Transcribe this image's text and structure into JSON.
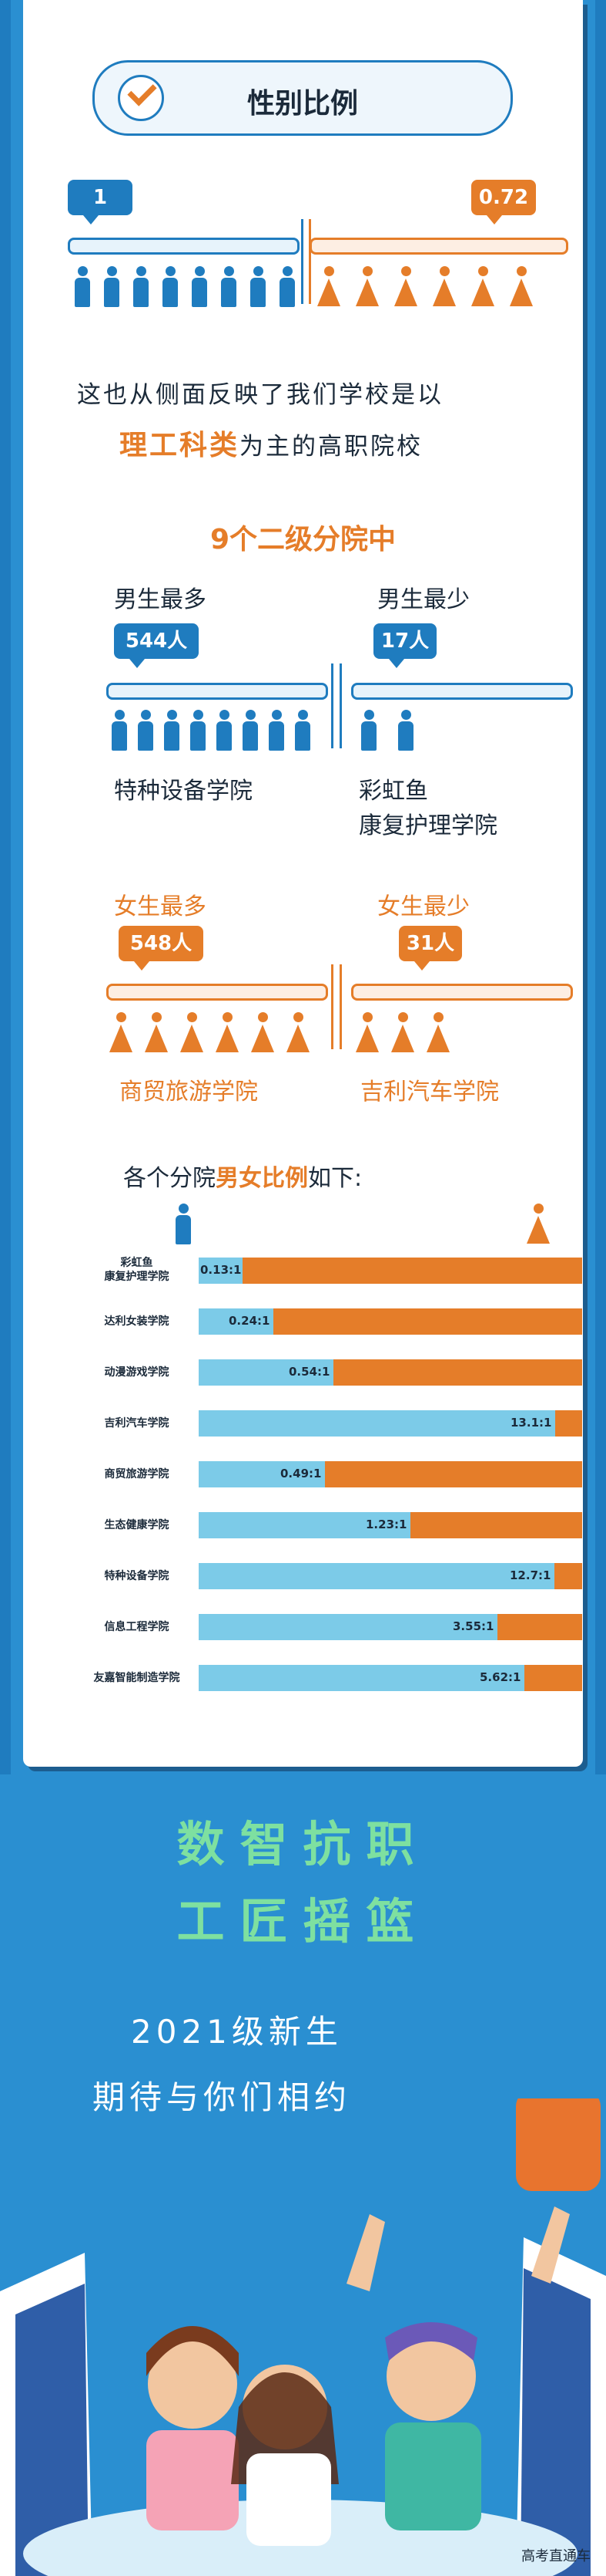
{
  "header": {
    "title": "性别比例"
  },
  "ratio": {
    "male_value": "1",
    "female_value": "0.72"
  },
  "line1": "这也从侧面反映了我们学校是以",
  "line2_highlight": "理工科类",
  "line2_rest": "为主的高职院校",
  "colleges_title": "9个二级分院中",
  "male": {
    "most_label": "男生最多",
    "most_value": "544人",
    "most_college": "特种设备学院",
    "least_label": "男生最少",
    "least_value": "17人",
    "least_college_l1": "彩虹鱼",
    "least_college_l2": "康复护理学院"
  },
  "female": {
    "most_label": "女生最多",
    "most_value": "548人",
    "most_college": "商贸旅游学院",
    "least_label": "女生最少",
    "least_value": "31人",
    "least_college": "吉利汽车学院"
  },
  "ratio_title_pre": "各个分院",
  "ratio_title_highlight": "男女比例",
  "ratio_title_post": "如下:",
  "chart_data": {
    "type": "bar",
    "categories": [
      "彩虹鱼康复护理学院",
      "达利女装学院",
      "动漫游戏学院",
      "吉利汽车学院",
      "商贸旅游学院",
      "生态健康学院",
      "特种设备学院",
      "信息工程学院",
      "友嘉智能制造学院"
    ],
    "labels": [
      "0.13:1",
      "0.24:1",
      "0.54:1",
      "13.1:1",
      "0.49:1",
      "1.23:1",
      "12.7:1",
      "3.55:1",
      "5.62:1"
    ],
    "male_share": [
      0.115,
      0.194,
      0.351,
      0.929,
      0.329,
      0.552,
      0.927,
      0.78,
      0.849
    ],
    "colors": {
      "male": "#7ccbe8",
      "female": "#e57d29"
    }
  },
  "slogan1": "数智抗职",
  "slogan2": "工匠摇篮",
  "sub1": "2021级新生",
  "sub2": "期待与你们相约",
  "watermark": "高考直通车"
}
